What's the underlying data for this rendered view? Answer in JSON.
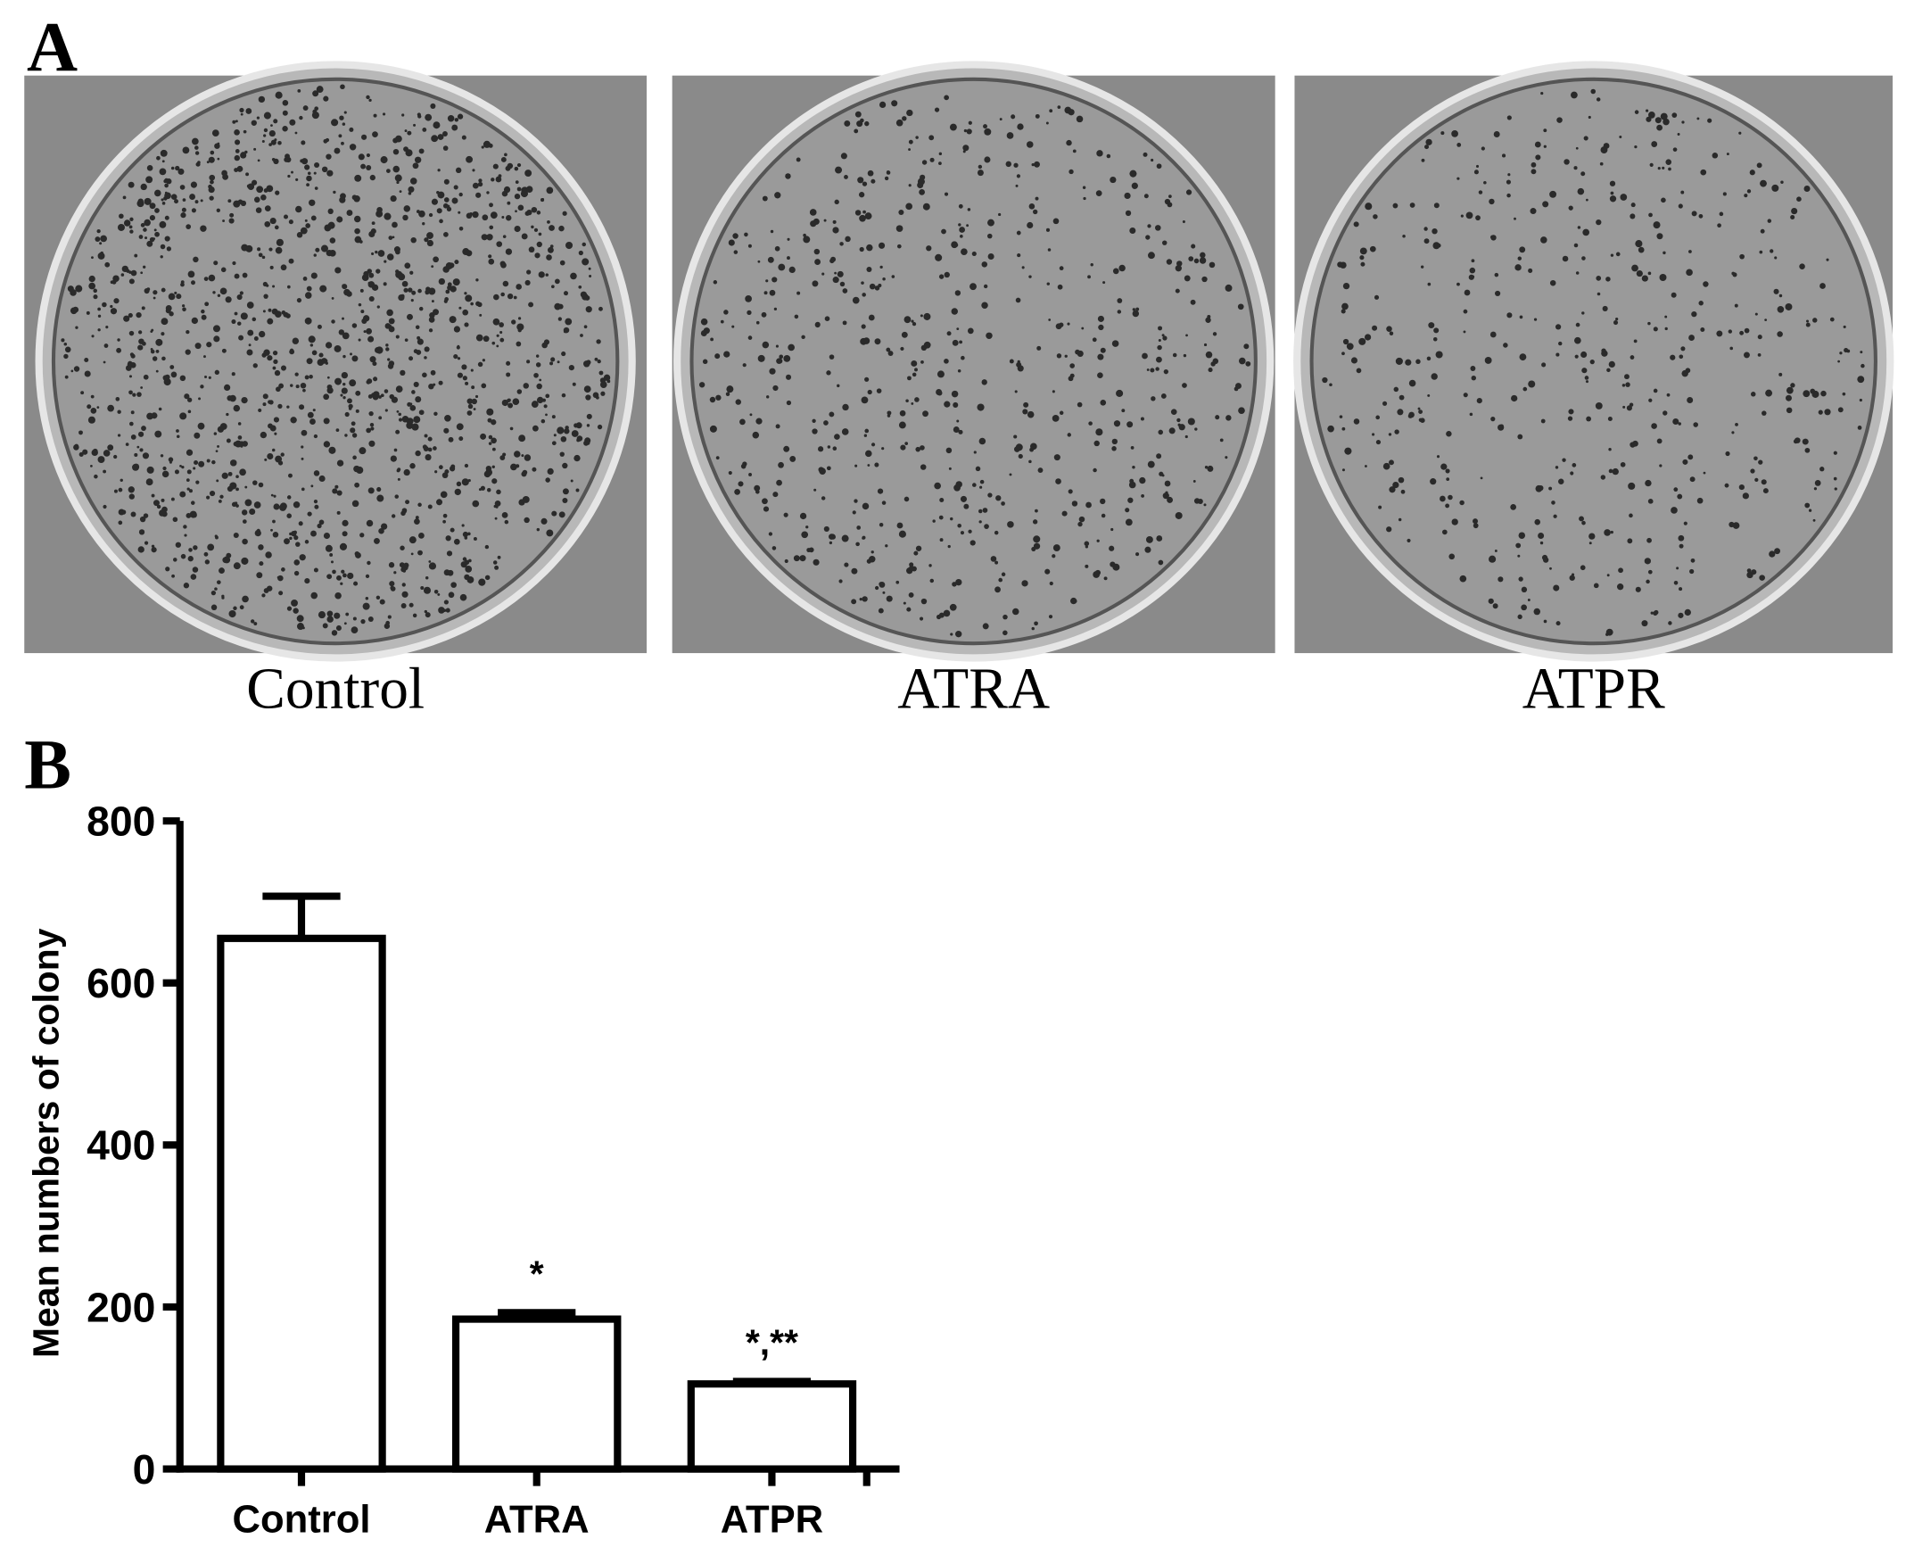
{
  "panel_a": {
    "label": "A",
    "captions": [
      "Control",
      "ATRA",
      "ATPR"
    ]
  },
  "panel_b": {
    "label": "B"
  },
  "chart_data": {
    "type": "bar",
    "ylabel": "Mean numbers of colony",
    "categories": [
      "Control",
      "ATRA",
      "ATPR"
    ],
    "values": [
      655,
      185,
      105
    ],
    "errors": [
      52,
      8,
      3
    ],
    "significance_labels": [
      null,
      "*",
      "*,**"
    ],
    "color": "#ffffff",
    "edge_color": "#000000",
    "ylim": [
      0,
      800
    ],
    "yticks": [
      0,
      200,
      400,
      600,
      800
    ],
    "grid": false
  }
}
